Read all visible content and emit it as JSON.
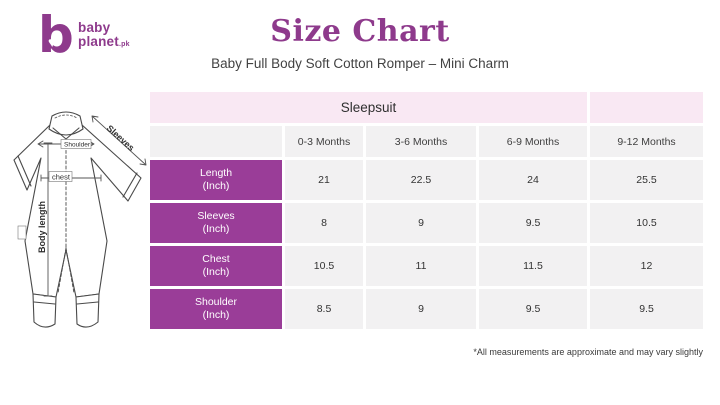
{
  "brand": {
    "logo_line1": "baby",
    "logo_line2": "planet",
    "logo_suffix": ".pk",
    "logo_mark_letter": "b",
    "logo_heart": "♥"
  },
  "header": {
    "title": "Size Chart",
    "subtitle": "Baby Full Body Soft Cotton Romper – Mini Charm"
  },
  "diagram": {
    "labels": {
      "sleeves": "Sleeves",
      "shoulder": "Shoulder",
      "chest": "chest",
      "body_length": "Body length"
    }
  },
  "table": {
    "group_header": "Sleepsuit",
    "columns": [
      "0-3 Months",
      "3-6 Months",
      "6-9 Months",
      "9-12 Months"
    ],
    "rows": [
      {
        "label": "Length",
        "unit": "(Inch)",
        "values": [
          "21",
          "22.5",
          "24",
          "25.5"
        ]
      },
      {
        "label": "Sleeves",
        "unit": "(Inch)",
        "values": [
          "8",
          "9",
          "9.5",
          "10.5"
        ]
      },
      {
        "label": "Chest",
        "unit": "(Inch)",
        "values": [
          "10.5",
          "11",
          "11.5",
          "12"
        ]
      },
      {
        "label": "Shoulder",
        "unit": "(Inch)",
        "values": [
          "8.5",
          "9",
          "9.5",
          "9.5"
        ]
      }
    ]
  },
  "footnote": "*All measurements are approximate and may vary slightly",
  "colors": {
    "brand_purple": "#8e3a8c",
    "cell_purple": "#9a3d98",
    "header_pink": "#f9e8f3",
    "cell_gray": "#f2f1f2"
  }
}
